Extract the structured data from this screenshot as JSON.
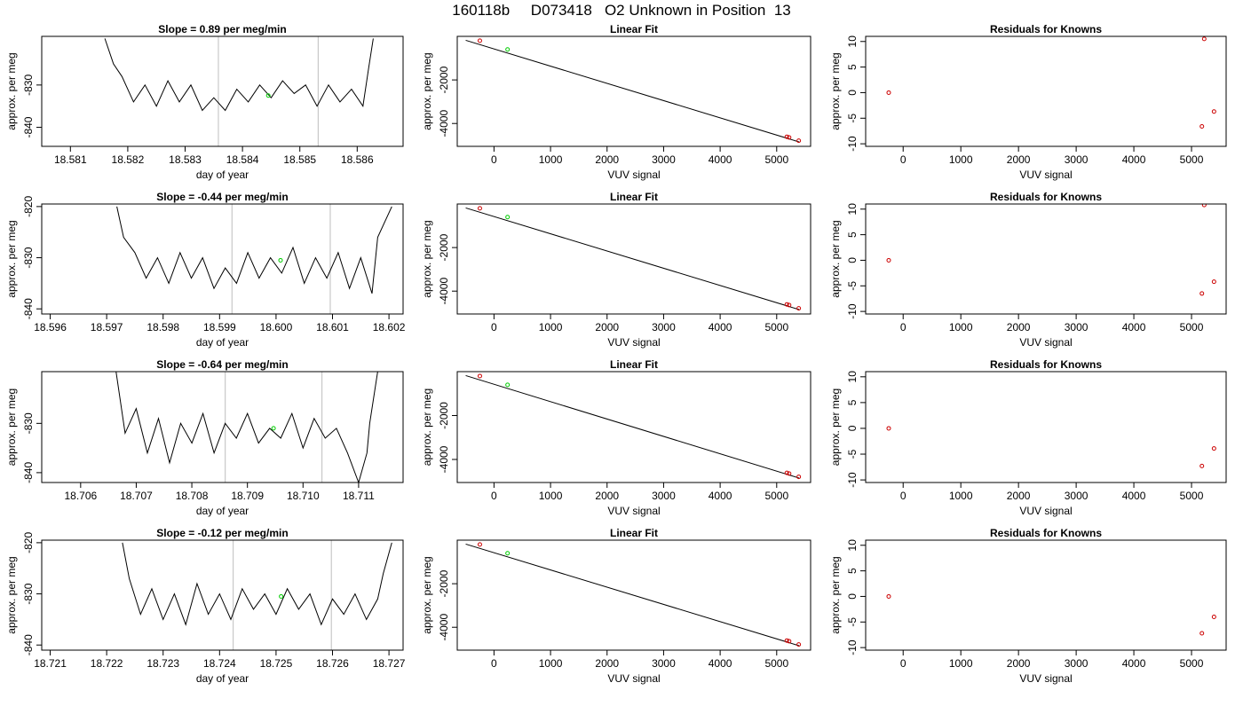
{
  "title": "160118b     D073418   O2 Unknown in Position  13",
  "colors": {
    "trace": "#000000",
    "known": "#cc0000",
    "unknown": "#00cc00",
    "vline": "#c8c8c8",
    "axis": "#000000"
  },
  "rows": [
    {
      "slope": {
        "title": "Slope =  0.89  per meg/min",
        "xlabel": "day of year",
        "ylabel": "approx. per meg",
        "xlim": [
          18.5805,
          18.5868
        ],
        "ylim": [
          -844.5,
          -818.5
        ],
        "xticks": [
          18.581,
          18.582,
          18.583,
          18.584,
          18.585,
          18.586
        ],
        "xticklabels": [
          "18.581",
          "18.582",
          "18.583",
          "18.584",
          "18.585",
          "18.586"
        ],
        "yticks": [
          -830,
          -840
        ],
        "yticklabels": [
          "-830",
          "-840"
        ],
        "vlines": [
          18.58358,
          18.58532
        ],
        "trace_x": [
          18.5816,
          18.58175,
          18.5819,
          18.5821,
          18.5823,
          18.5825,
          18.5827,
          18.5829,
          18.5831,
          18.5833,
          18.5835,
          18.5837,
          18.5839,
          18.5841,
          18.5843,
          18.5845,
          18.5847,
          18.5849,
          18.5851,
          18.5853,
          18.5855,
          18.5857,
          18.5859,
          18.5861,
          18.5862,
          18.58628
        ],
        "trace_y": [
          -819,
          -825,
          -828,
          -834,
          -830,
          -835,
          -829,
          -834,
          -830,
          -836,
          -833,
          -836,
          -831,
          -834,
          -830,
          -833,
          -829,
          -832,
          -830,
          -835,
          -830,
          -834,
          -831,
          -835,
          -826,
          -819
        ],
        "unknown_point": [
          18.58445,
          -832.5
        ]
      },
      "fit": {
        "title": "Linear Fit",
        "xlabel": "VUV signal",
        "ylabel": "approx. per meg",
        "xlim": [
          -650,
          5600
        ],
        "ylim": [
          -5050,
          0
        ],
        "xticks": [
          0,
          1000,
          2000,
          3000,
          4000,
          5000
        ],
        "xticklabels": [
          "0",
          "1000",
          "2000",
          "3000",
          "4000",
          "5000"
        ],
        "yticks": [
          -2000,
          -4000
        ],
        "yticklabels": [
          "-2000",
          "-4000"
        ],
        "line": [
          [
            -500,
            -180
          ],
          [
            5400,
            -4850
          ]
        ],
        "knowns": [
          [
            -250,
            -200
          ],
          [
            5180,
            -4610
          ],
          [
            5220,
            -4640
          ],
          [
            5390,
            -4790
          ]
        ],
        "unknowns": [
          [
            240,
            -600
          ]
        ]
      },
      "resid": {
        "title": "Residuals for Knowns",
        "xlabel": "VUV signal",
        "ylabel": "approx. per meg",
        "xlim": [
          -650,
          5600
        ],
        "ylim": [
          -10.5,
          11
        ],
        "xticks": [
          0,
          1000,
          2000,
          3000,
          4000,
          5000
        ],
        "xticklabels": [
          "0",
          "1000",
          "2000",
          "3000",
          "4000",
          "5000"
        ],
        "yticks": [
          10,
          5,
          0,
          -5,
          -10
        ],
        "yticklabels": [
          "10",
          "5",
          "0",
          "-5",
          "-10"
        ],
        "points": [
          [
            -250,
            0
          ],
          [
            5180,
            -6.6
          ],
          [
            5220,
            10.5
          ],
          [
            5390,
            -3.7
          ]
        ]
      }
    },
    {
      "slope": {
        "title": "Slope =  -0.44  per meg/min",
        "xlabel": "day of year",
        "ylabel": "approx. per meg",
        "xlim": [
          18.59585,
          18.60225
        ],
        "ylim": [
          -841,
          -819.5
        ],
        "xticks": [
          18.596,
          18.597,
          18.598,
          18.599,
          18.6,
          18.601,
          18.602
        ],
        "xticklabels": [
          "18.596",
          "18.597",
          "18.598",
          "18.599",
          "18.600",
          "18.601",
          "18.602"
        ],
        "yticks": [
          -820,
          -830,
          -840
        ],
        "yticklabels": [
          "-820",
          "-830",
          "-840"
        ],
        "vlines": [
          18.59922,
          18.60096
        ],
        "trace_x": [
          18.59718,
          18.5973,
          18.5975,
          18.5977,
          18.5979,
          18.5981,
          18.5983,
          18.5985,
          18.5987,
          18.5989,
          18.5991,
          18.5993,
          18.5995,
          18.5997,
          18.5999,
          18.6001,
          18.6003,
          18.6005,
          18.6007,
          18.6009,
          18.6011,
          18.6013,
          18.6015,
          18.6017,
          18.6018,
          18.60205
        ],
        "trace_y": [
          -820,
          -826,
          -829,
          -834,
          -830,
          -835,
          -829,
          -834,
          -830,
          -836,
          -832,
          -835,
          -829,
          -834,
          -830,
          -833,
          -828,
          -835,
          -830,
          -834,
          -829,
          -836,
          -830,
          -837,
          -826,
          -820
        ],
        "unknown_point": [
          18.60008,
          -830.5
        ]
      },
      "fit": {
        "title": "Linear Fit",
        "xlabel": "VUV signal",
        "ylabel": "approx. per meg",
        "xlim": [
          -650,
          5600
        ],
        "ylim": [
          -5050,
          0
        ],
        "xticks": [
          0,
          1000,
          2000,
          3000,
          4000,
          5000
        ],
        "xticklabels": [
          "0",
          "1000",
          "2000",
          "3000",
          "4000",
          "5000"
        ],
        "yticks": [
          -2000,
          -4000
        ],
        "yticklabels": [
          "-2000",
          "-4000"
        ],
        "line": [
          [
            -500,
            -180
          ],
          [
            5400,
            -4850
          ]
        ],
        "knowns": [
          [
            -250,
            -200
          ],
          [
            5180,
            -4610
          ],
          [
            5220,
            -4640
          ],
          [
            5390,
            -4790
          ]
        ],
        "unknowns": [
          [
            240,
            -600
          ]
        ]
      },
      "resid": {
        "title": "Residuals for Knowns",
        "xlabel": "VUV signal",
        "ylabel": "approx. per meg",
        "xlim": [
          -650,
          5600
        ],
        "ylim": [
          -10.5,
          11
        ],
        "xticks": [
          0,
          1000,
          2000,
          3000,
          4000,
          5000
        ],
        "xticklabels": [
          "0",
          "1000",
          "2000",
          "3000",
          "4000",
          "5000"
        ],
        "yticks": [
          10,
          5,
          0,
          -5,
          -10
        ],
        "yticklabels": [
          "10",
          "5",
          "0",
          "-5",
          "-10"
        ],
        "points": [
          [
            -250,
            0
          ],
          [
            5180,
            -6.5
          ],
          [
            5220,
            10.8
          ],
          [
            5390,
            -4.2
          ]
        ]
      }
    },
    {
      "slope": {
        "title": "Slope =  -0.64  per meg/min",
        "xlabel": "day of year",
        "ylabel": "approx. per meg",
        "xlim": [
          18.7053,
          18.7118
        ],
        "ylim": [
          -842,
          -819.5
        ],
        "xticks": [
          18.706,
          18.707,
          18.708,
          18.709,
          18.71,
          18.711
        ],
        "xticklabels": [
          "18.706",
          "18.707",
          "18.708",
          "18.709",
          "18.710",
          "18.711"
        ],
        "yticks": [
          -830,
          -840
        ],
        "yticklabels": [
          "-830",
          "-840"
        ],
        "vlines": [
          18.7086,
          18.71034
        ],
        "trace_x": [
          18.70663,
          18.7068,
          18.707,
          18.7072,
          18.7074,
          18.7076,
          18.7078,
          18.708,
          18.7082,
          18.7084,
          18.7086,
          18.7088,
          18.709,
          18.7092,
          18.7094,
          18.7096,
          18.7098,
          18.71,
          18.7102,
          18.7104,
          18.7106,
          18.7108,
          18.711,
          18.71115,
          18.7112,
          18.71135
        ],
        "trace_y": [
          -819,
          -832,
          -827,
          -836,
          -829,
          -838,
          -830,
          -834,
          -828,
          -836,
          -830,
          -833,
          -828,
          -834,
          -831,
          -833,
          -828,
          -835,
          -829,
          -833,
          -831,
          -836,
          -842,
          -836,
          -830,
          -819
        ],
        "unknown_point": [
          18.70947,
          -831
        ]
      },
      "fit": {
        "title": "Linear Fit",
        "xlabel": "VUV signal",
        "ylabel": "approx. per meg",
        "xlim": [
          -650,
          5600
        ],
        "ylim": [
          -5050,
          0
        ],
        "xticks": [
          0,
          1000,
          2000,
          3000,
          4000,
          5000
        ],
        "xticklabels": [
          "0",
          "1000",
          "2000",
          "3000",
          "4000",
          "5000"
        ],
        "yticks": [
          -2000,
          -4000
        ],
        "yticklabels": [
          "-2000",
          "-4000"
        ],
        "line": [
          [
            -500,
            -180
          ],
          [
            5400,
            -4850
          ]
        ],
        "knowns": [
          [
            -250,
            -200
          ],
          [
            5180,
            -4610
          ],
          [
            5220,
            -4640
          ],
          [
            5390,
            -4790
          ]
        ],
        "unknowns": [
          [
            240,
            -600
          ]
        ]
      },
      "resid": {
        "title": "Residuals for Knowns",
        "xlabel": "VUV signal",
        "ylabel": "approx. per meg",
        "xlim": [
          -650,
          5600
        ],
        "ylim": [
          -10.5,
          11
        ],
        "xticks": [
          0,
          1000,
          2000,
          3000,
          4000,
          5000
        ],
        "xticklabels": [
          "0",
          "1000",
          "2000",
          "3000",
          "4000",
          "5000"
        ],
        "points": [
          [
            -250,
            0
          ],
          [
            5180,
            -7.3
          ],
          [
            5390,
            -3.9
          ]
        ],
        "yticks": [
          10,
          5,
          0,
          -5,
          -10
        ],
        "yticklabels": [
          "10",
          "5",
          "0",
          "-5",
          "-10"
        ]
      }
    },
    {
      "slope": {
        "title": "Slope =  -0.12  per meg/min",
        "xlabel": "day of year",
        "ylabel": "approx. per meg",
        "xlim": [
          18.72085,
          18.72725
        ],
        "ylim": [
          -841,
          -819.5
        ],
        "xticks": [
          18.721,
          18.722,
          18.723,
          18.724,
          18.725,
          18.726,
          18.727
        ],
        "xticklabels": [
          "18.721",
          "18.722",
          "18.723",
          "18.724",
          "18.725",
          "18.726",
          "18.727"
        ],
        "yticks": [
          -820,
          -830,
          -840
        ],
        "yticklabels": [
          "-820",
          "-830",
          "-840"
        ],
        "vlines": [
          18.72424,
          18.72598
        ],
        "trace_x": [
          18.72228,
          18.7224,
          18.7226,
          18.7228,
          18.723,
          18.7232,
          18.7234,
          18.7236,
          18.7238,
          18.724,
          18.7242,
          18.7244,
          18.7246,
          18.7248,
          18.725,
          18.7252,
          18.7254,
          18.7256,
          18.7258,
          18.726,
          18.7262,
          18.7264,
          18.7266,
          18.7268,
          18.7269,
          18.72705
        ],
        "trace_y": [
          -820,
          -827,
          -834,
          -829,
          -835,
          -830,
          -836,
          -828,
          -834,
          -830,
          -835,
          -829,
          -833,
          -830,
          -834,
          -829,
          -833,
          -830,
          -836,
          -831,
          -834,
          -830,
          -835,
          -831,
          -826,
          -820
        ],
        "unknown_point": [
          18.72509,
          -830.5
        ]
      },
      "fit": {
        "title": "Linear Fit",
        "xlabel": "VUV signal",
        "ylabel": "approx. per meg",
        "xlim": [
          -650,
          5600
        ],
        "ylim": [
          -5050,
          0
        ],
        "xticks": [
          0,
          1000,
          2000,
          3000,
          4000,
          5000
        ],
        "xticklabels": [
          "0",
          "1000",
          "2000",
          "3000",
          "4000",
          "5000"
        ],
        "yticks": [
          -2000,
          -4000
        ],
        "yticklabels": [
          "-2000",
          "-4000"
        ],
        "line": [
          [
            -500,
            -180
          ],
          [
            5400,
            -4850
          ]
        ],
        "knowns": [
          [
            -250,
            -200
          ],
          [
            5180,
            -4610
          ],
          [
            5220,
            -4640
          ],
          [
            5390,
            -4790
          ]
        ],
        "unknowns": [
          [
            240,
            -600
          ]
        ]
      },
      "resid": {
        "title": "Residuals for Knowns",
        "xlabel": "VUV signal",
        "ylabel": "approx. per meg",
        "xlim": [
          -650,
          5600
        ],
        "ylim": [
          -10.5,
          11
        ],
        "xticks": [
          0,
          1000,
          2000,
          3000,
          4000,
          5000
        ],
        "xticklabels": [
          "0",
          "1000",
          "2000",
          "3000",
          "4000",
          "5000"
        ],
        "yticks": [
          10,
          5,
          0,
          -5,
          -10
        ],
        "yticklabels": [
          "10",
          "5",
          "0",
          "-5",
          "-10"
        ],
        "points": [
          [
            -250,
            0
          ],
          [
            5180,
            -7.2
          ],
          [
            5390,
            -4.0
          ]
        ]
      }
    }
  ],
  "chart_data": [
    {
      "type": "line",
      "panel": "row1-slope",
      "title": "Slope =  0.89  per meg/min",
      "xlabel": "day of year",
      "ylabel": "approx. per meg",
      "xlim": [
        18.5805,
        18.5868
      ],
      "ylim": [
        -844.5,
        -818.5
      ]
    },
    {
      "type": "scatter",
      "panel": "row1-fit",
      "title": "Linear Fit",
      "xlabel": "VUV signal",
      "ylabel": "approx. per meg"
    },
    {
      "type": "scatter",
      "panel": "row1-resid",
      "title": "Residuals for Knowns",
      "xlabel": "VUV signal",
      "ylabel": "approx. per meg"
    },
    {
      "type": "line",
      "panel": "row2-slope",
      "title": "Slope =  -0.44  per meg/min",
      "xlabel": "day of year",
      "ylabel": "approx. per meg"
    },
    {
      "type": "scatter",
      "panel": "row2-fit",
      "title": "Linear Fit",
      "xlabel": "VUV signal",
      "ylabel": "approx. per meg"
    },
    {
      "type": "scatter",
      "panel": "row2-resid",
      "title": "Residuals for Knowns",
      "xlabel": "VUV signal",
      "ylabel": "approx. per meg"
    },
    {
      "type": "line",
      "panel": "row3-slope",
      "title": "Slope =  -0.64  per meg/min",
      "xlabel": "day of year",
      "ylabel": "approx. per meg"
    },
    {
      "type": "scatter",
      "panel": "row3-fit",
      "title": "Linear Fit",
      "xlabel": "VUV signal",
      "ylabel": "approx. per meg"
    },
    {
      "type": "scatter",
      "panel": "row3-resid",
      "title": "Residuals for Knowns",
      "xlabel": "VUV signal",
      "ylabel": "approx. per meg"
    },
    {
      "type": "line",
      "panel": "row4-slope",
      "title": "Slope =  -0.12  per meg/min",
      "xlabel": "day of year",
      "ylabel": "approx. per meg"
    },
    {
      "type": "scatter",
      "panel": "row4-fit",
      "title": "Linear Fit",
      "xlabel": "VUV signal",
      "ylabel": "approx. per meg"
    },
    {
      "type": "scatter",
      "panel": "row4-resid",
      "title": "Residuals for Knowns",
      "xlabel": "VUV signal",
      "ylabel": "approx. per meg"
    }
  ]
}
